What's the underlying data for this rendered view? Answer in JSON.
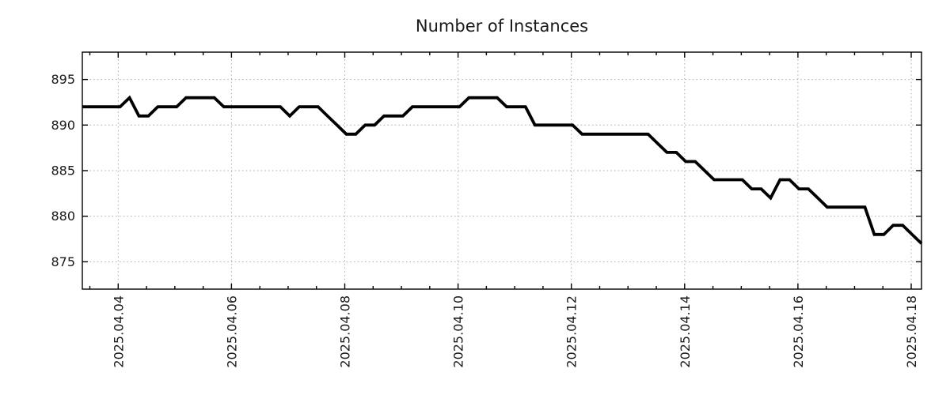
{
  "chart_data": {
    "type": "line",
    "title": "Number of Instances",
    "x": {
      "tick_labels": [
        "2025.04.04",
        "2025.04.06",
        "2025.04.08",
        "2025.04.10",
        "2025.04.12",
        "2025.04.14",
        "2025.04.16",
        "2025.04.18"
      ],
      "major_tick_interval_days": 2,
      "minor_tick_interval_hours": 12,
      "start_time_estimate": "2025-04-03 08:00",
      "end_time_estimate": "2025-04-18 04:00",
      "sample_interval_hours": 4
    },
    "y": {
      "tick_labels": [
        "875",
        "880",
        "885",
        "890",
        "895"
      ],
      "range": [
        872,
        898
      ]
    },
    "series": [
      {
        "name": "instances",
        "color": "#000000",
        "values": [
          892,
          892,
          892,
          892,
          892,
          893,
          891,
          891,
          892,
          892,
          892,
          893,
          893,
          893,
          893,
          892,
          892,
          892,
          892,
          892,
          892,
          892,
          891,
          892,
          892,
          892,
          891,
          890,
          889,
          889,
          890,
          890,
          891,
          891,
          891,
          892,
          892,
          892,
          892,
          892,
          892,
          893,
          893,
          893,
          893,
          892,
          892,
          892,
          890,
          890,
          890,
          890,
          890,
          889,
          889,
          889,
          889,
          889,
          889,
          889,
          889,
          888,
          887,
          887,
          886,
          886,
          885,
          884,
          884,
          884,
          884,
          883,
          883,
          882,
          884,
          884,
          883,
          883,
          882,
          881,
          881,
          881,
          881,
          881,
          878,
          878,
          879,
          879,
          878,
          877
        ]
      }
    ],
    "grid": "dotted",
    "legend": false,
    "colors": {
      "line": "#000000",
      "grid": "#ababab",
      "text": "#1a1a1a",
      "border": "#000000",
      "background": "#ffffff"
    }
  }
}
